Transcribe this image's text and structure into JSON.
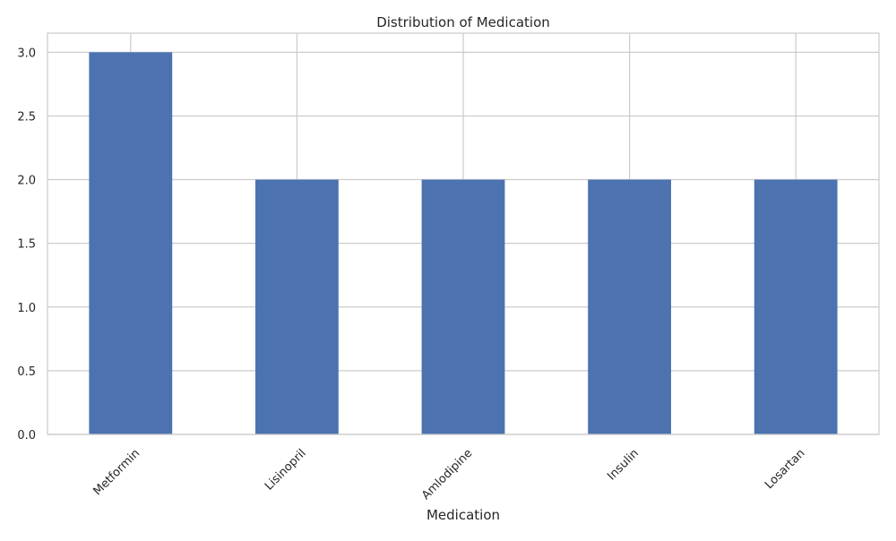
{
  "chart_data": {
    "type": "bar",
    "title": "Distribution of Medication",
    "xlabel": "Medication",
    "ylabel": "",
    "categories": [
      "Metformin",
      "Lisinopril",
      "Amlodipine",
      "Insulin",
      "Losartan"
    ],
    "values": [
      3,
      2,
      2,
      2,
      2
    ],
    "ylim": [
      0,
      3.15
    ],
    "yticks": [
      "0.0",
      "0.5",
      "1.0",
      "1.5",
      "2.0",
      "2.5",
      "3.0"
    ],
    "grid": true,
    "colors": {
      "bar": "#4c72b0",
      "grid": "#cccccc",
      "frame": "#cccccc",
      "text": "#262626"
    }
  }
}
